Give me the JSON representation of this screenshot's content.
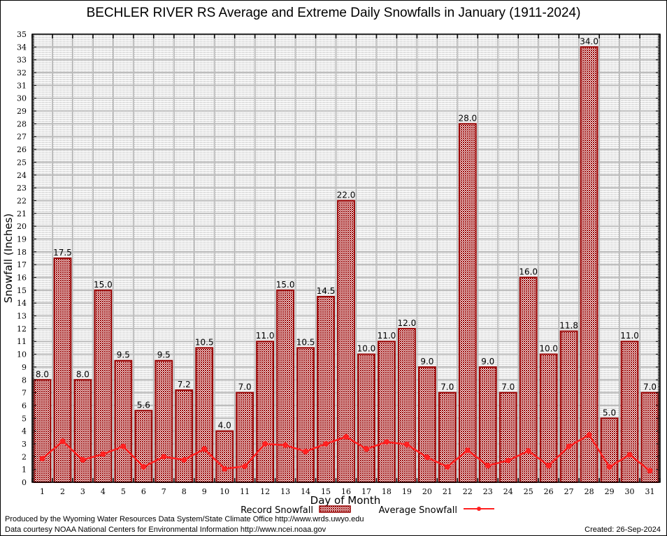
{
  "chart_data": {
    "type": "bar",
    "title": "BECHLER RIVER RS Average and Extreme Daily Snowfalls in January (1911-2024)",
    "xlabel": "Day of Month",
    "ylabel": "Snowfall (Inches)",
    "ylim": [
      0,
      35
    ],
    "yticks": [
      "0",
      "1",
      "2",
      "3",
      "4",
      "5",
      "6",
      "7",
      "8",
      "9",
      "10",
      "11",
      "12",
      "13",
      "14",
      "15",
      "16",
      "17",
      "18",
      "19",
      "20",
      "21",
      "22",
      "23",
      "24",
      "25",
      "26",
      "27",
      "28",
      "29",
      "30",
      "31",
      "32",
      "33",
      "34",
      "35"
    ],
    "grid": true,
    "legend_position": "bottom",
    "categories": [
      "1",
      "2",
      "3",
      "4",
      "5",
      "6",
      "7",
      "8",
      "9",
      "10",
      "11",
      "12",
      "13",
      "14",
      "15",
      "16",
      "17",
      "18",
      "19",
      "20",
      "21",
      "22",
      "23",
      "24",
      "25",
      "26",
      "27",
      "28",
      "29",
      "30",
      "31"
    ],
    "series": [
      {
        "name": "Record Snowfall",
        "type": "bar",
        "color": "#990000",
        "values": [
          8.0,
          17.5,
          8.0,
          15.0,
          9.5,
          5.6,
          9.5,
          7.2,
          10.5,
          4.0,
          7.0,
          11.0,
          15.0,
          10.5,
          14.5,
          22.0,
          10.0,
          11.0,
          12.0,
          9.0,
          7.0,
          28.0,
          9.0,
          7.0,
          16.0,
          10.0,
          11.8,
          34.0,
          5.0,
          11.0,
          7.0
        ],
        "labels": [
          "8.0",
          "17.5",
          "8.0",
          "15.0",
          "9.5",
          "5.6",
          "9.5",
          "7.2",
          "10.5",
          "4.0",
          "7.0",
          "11.0",
          "15.0",
          "10.5",
          "14.5",
          "22.0",
          "10.0",
          "11.0",
          "12.0",
          "9.0",
          "7.0",
          "28.0",
          "9.0",
          "7.0",
          "16.0",
          "10.0",
          "11.8",
          "34.0",
          "5.0",
          "11.0",
          "7.0"
        ]
      },
      {
        "name": "Average Snowfall",
        "type": "line",
        "color": "#ff2020",
        "values": [
          1.85,
          3.2,
          1.75,
          2.2,
          2.8,
          1.2,
          2.0,
          1.75,
          2.6,
          1.05,
          1.25,
          3.0,
          2.9,
          2.4,
          3.0,
          3.55,
          2.6,
          3.15,
          2.95,
          1.95,
          1.2,
          2.5,
          1.3,
          1.7,
          2.45,
          1.3,
          2.8,
          3.7,
          1.2,
          2.15,
          0.9
        ]
      }
    ]
  },
  "footer": {
    "produced_by": "Produced by the Wyoming Water Resources Data System/State Climate Office http://www.wrds.uwyo.edu",
    "data_courtesy": "Data courtesy NOAA National Centers for Environmental Information http://www.ncei.noaa.gov",
    "created": "Created: 26-Sep-2024"
  }
}
